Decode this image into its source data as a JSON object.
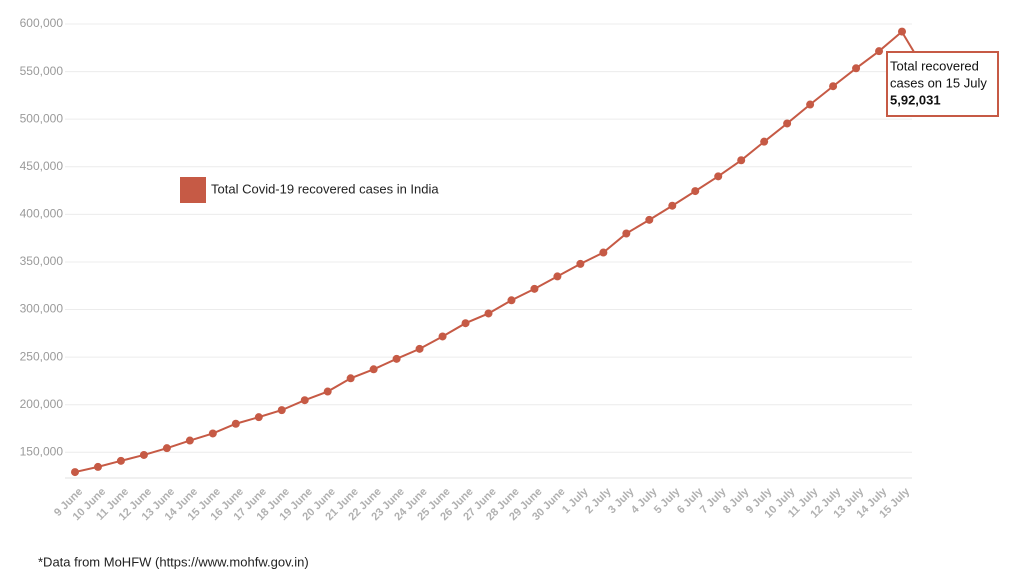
{
  "chart_data": {
    "type": "line",
    "categories": [
      "9 June",
      "10 June",
      "11 June",
      "12 June",
      "13 June",
      "14 June",
      "15 June",
      "16 June",
      "17 June",
      "18 June",
      "19 June",
      "20 June",
      "21 June",
      "22 June",
      "23 June",
      "24 June",
      "25 June",
      "26 June",
      "27 June",
      "28 June",
      "29 June",
      "30 June",
      "1 July",
      "2 July",
      "3 July",
      "4 July",
      "5 July",
      "6 July",
      "7 July",
      "8 July",
      "9 July",
      "10 July",
      "11 July",
      "12 July",
      "13 July",
      "14 July",
      "15 July"
    ],
    "series": [
      {
        "name": "Total Covid-19 recovered cases in India",
        "color": "#c65a45",
        "values": [
          129215,
          134670,
          141029,
          147195,
          154330,
          162379,
          169798,
          180013,
          186935,
          194325,
          204711,
          213831,
          227756,
          237196,
          248190,
          258685,
          271697,
          285637,
          295881,
          309713,
          321723,
          334822,
          347979,
          359860,
          379892,
          394227,
          409083,
          424433,
          439948,
          456831,
          476378,
          495513,
          515386,
          534621,
          553471,
          571460,
          592031
        ]
      }
    ],
    "ylim": [
      123000,
      600000
    ],
    "yticks": [
      {
        "value": 150000,
        "label": "150,000"
      },
      {
        "value": 200000,
        "label": "200,000"
      },
      {
        "value": 250000,
        "label": "250,000"
      },
      {
        "value": 300000,
        "label": "300,000"
      },
      {
        "value": 350000,
        "label": "350,000"
      },
      {
        "value": 400000,
        "label": "400,000"
      },
      {
        "value": 450000,
        "label": "450,000"
      },
      {
        "value": 500000,
        "label": "500,000"
      },
      {
        "value": 550000,
        "label": "550,000"
      },
      {
        "value": 600000,
        "label": "600,000"
      }
    ],
    "grid": true,
    "annotation": {
      "text": [
        "Total recovered",
        "cases on 15 July"
      ],
      "label": "5,92,031"
    },
    "source": "*Data from MoHFW (https://www.mohfw.gov.in)"
  }
}
